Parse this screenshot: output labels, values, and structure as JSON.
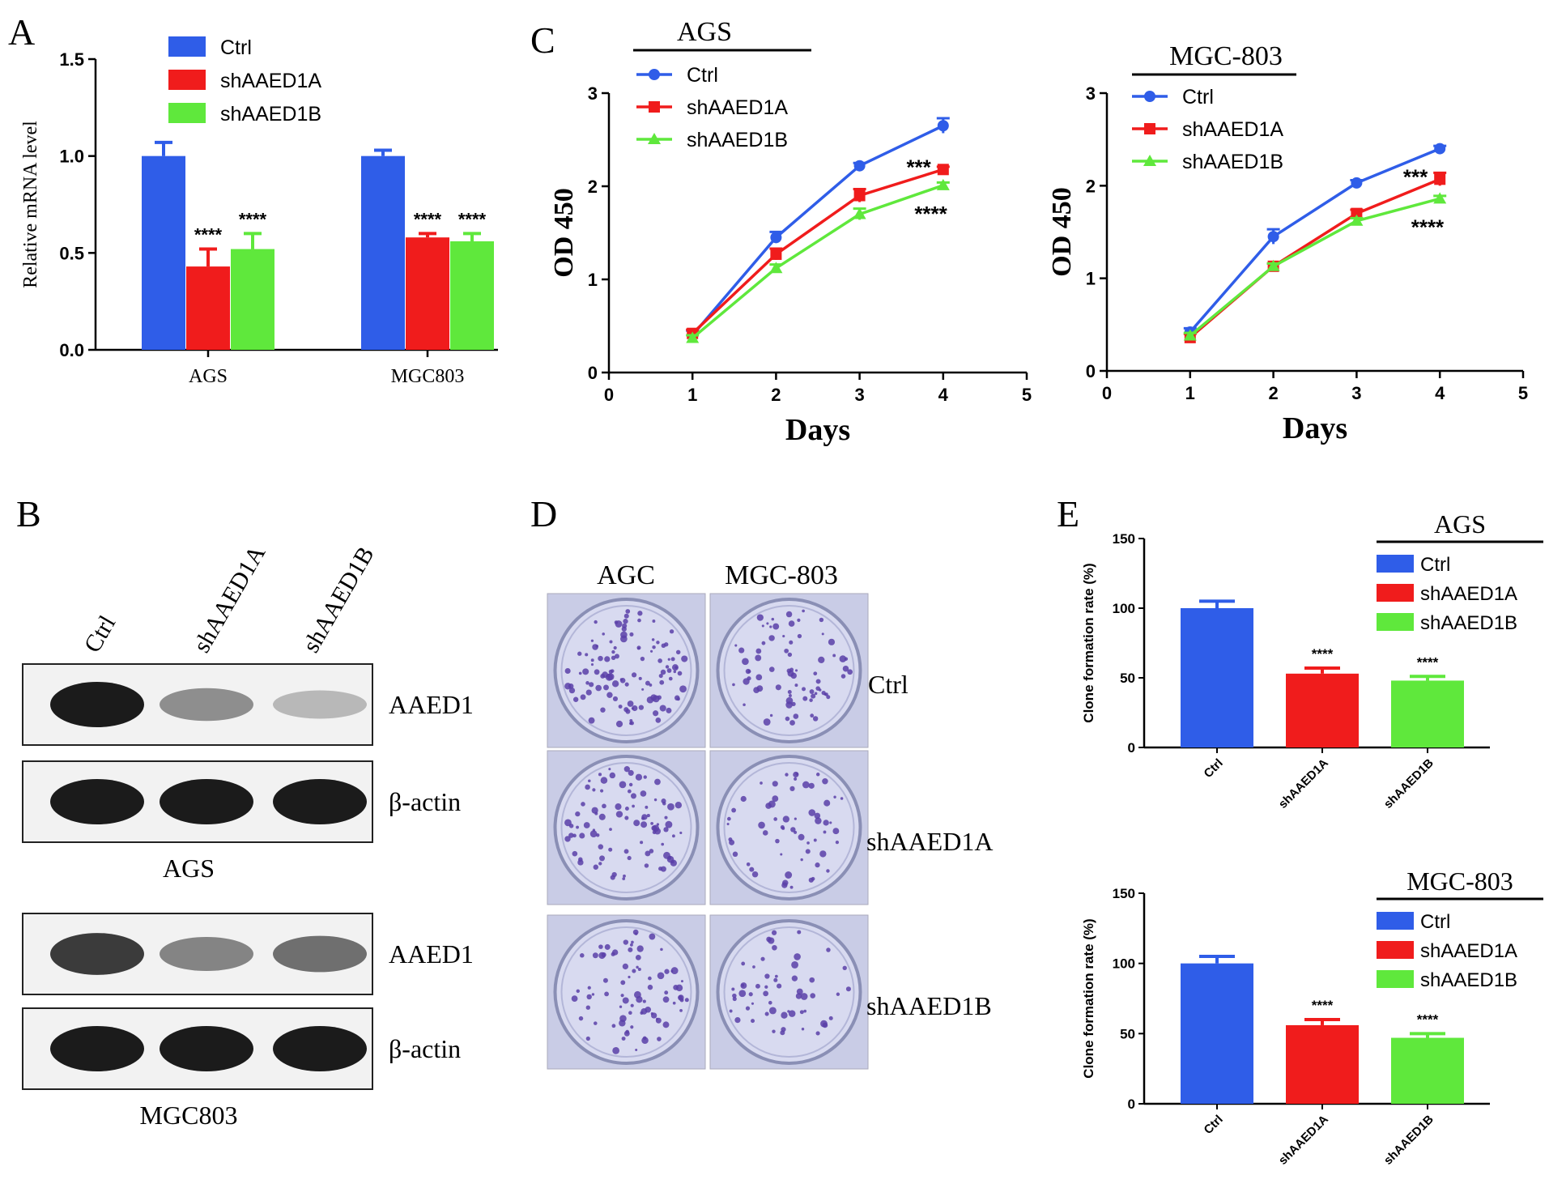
{
  "colors": {
    "ctrl": "#2f5de8",
    "shA": "#f01c1c",
    "shB": "#5fe83c",
    "dish_bg": "#d8daf0",
    "colony": "#5a3fa8"
  },
  "panel_letters": {
    "A": "A",
    "B": "B",
    "C": "C",
    "D": "D",
    "E": "E"
  },
  "chart_data": [
    {
      "id": "A",
      "type": "bar",
      "categories": [
        "AGS",
        "MGC803"
      ],
      "series": [
        {
          "name": "Ctrl",
          "values": [
            1.0,
            1.0
          ],
          "errors": [
            0.07,
            0.03
          ]
        },
        {
          "name": "shAAED1A",
          "values": [
            0.43,
            0.58
          ],
          "errors": [
            0.09,
            0.02
          ]
        },
        {
          "name": "shAAED1B",
          "values": [
            0.52,
            0.56
          ],
          "errors": [
            0.08,
            0.04
          ]
        }
      ],
      "annotations": [
        [
          "",
          "",
          ""
        ],
        [
          "",
          "****",
          "****"
        ]
      ],
      "annotations_note": "",
      "stars": [
        [
          "",
          "****",
          "****"
        ],
        [
          "",
          "****",
          "****"
        ]
      ],
      "ylabel": "Relative mRNA level",
      "ylim": [
        0,
        1.5
      ],
      "yticks": [
        "0.0",
        "0.5",
        "1.0",
        "1.5"
      ],
      "legend": "top"
    },
    {
      "id": "C1",
      "type": "line",
      "title": "AGS",
      "x": [
        1,
        2,
        3,
        4
      ],
      "series": [
        {
          "name": "Ctrl",
          "values": [
            0.4,
            1.45,
            2.22,
            2.65
          ],
          "errors": [
            0.05,
            0.06,
            0.03,
            0.08
          ]
        },
        {
          "name": "shAAED1A",
          "values": [
            0.42,
            1.27,
            1.9,
            2.18
          ],
          "errors": [
            0.04,
            0.06,
            0.07,
            0.03
          ]
        },
        {
          "name": "shAAED1B",
          "values": [
            0.37,
            1.12,
            1.7,
            2.01
          ],
          "errors": [
            0.03,
            0.04,
            0.06,
            0.03
          ]
        }
      ],
      "stars": [
        "***",
        "****"
      ],
      "xlabel": "Days",
      "ylabel": "OD 450",
      "xlim": [
        0,
        5
      ],
      "ylim": [
        0,
        3
      ],
      "xticks": [
        "0",
        "1",
        "2",
        "3",
        "4",
        "5"
      ],
      "yticks": [
        "0",
        "1",
        "2",
        "3"
      ],
      "legend": "top-left"
    },
    {
      "id": "C2",
      "type": "line",
      "title": "MGC-803",
      "x": [
        1,
        2,
        3,
        4
      ],
      "series": [
        {
          "name": "Ctrl",
          "values": [
            0.42,
            1.45,
            2.03,
            2.4
          ],
          "errors": [
            0.04,
            0.08,
            0.03,
            0.03
          ]
        },
        {
          "name": "shAAED1A",
          "values": [
            0.36,
            1.13,
            1.7,
            2.07
          ],
          "errors": [
            0.04,
            0.03,
            0.04,
            0.07
          ]
        },
        {
          "name": "shAAED1B",
          "values": [
            0.38,
            1.13,
            1.62,
            1.86
          ],
          "errors": [
            0.03,
            0.03,
            0.03,
            0.03
          ]
        }
      ],
      "stars": [
        "***",
        "****"
      ],
      "xlabel": "Days",
      "ylabel": "OD 450",
      "xlim": [
        0,
        5
      ],
      "ylim": [
        0,
        3
      ],
      "xticks": [
        "0",
        "1",
        "2",
        "3",
        "4",
        "5"
      ],
      "yticks": [
        "0",
        "1",
        "2",
        "3"
      ],
      "legend": "top-left"
    },
    {
      "id": "E1",
      "type": "bar",
      "title": "AGS",
      "categories": [
        "Ctrl",
        "shAAED1A",
        "shAAED1B"
      ],
      "values": [
        100,
        53,
        48
      ],
      "errors": [
        5,
        4,
        3
      ],
      "stars": [
        "",
        "****",
        "****"
      ],
      "series_names": [
        "Ctrl",
        "shAAED1A",
        "shAAED1B"
      ],
      "ylabel": "Clone formation rate (%)",
      "ylim": [
        0,
        150
      ],
      "yticks": [
        "0",
        "50",
        "100",
        "150"
      ],
      "legend": "top-right"
    },
    {
      "id": "E2",
      "type": "bar",
      "title": "MGC-803",
      "categories": [
        "Ctrl",
        "shAAED1A",
        "shAAED1B"
      ],
      "values": [
        100,
        56,
        47
      ],
      "errors": [
        5,
        4,
        3
      ],
      "stars": [
        "",
        "****",
        "****"
      ],
      "series_names": [
        "Ctrl",
        "shAAED1A",
        "shAAED1B"
      ],
      "ylabel": "Clone formation rate (%)",
      "ylim": [
        0,
        150
      ],
      "yticks": [
        "0",
        "50",
        "100",
        "150"
      ],
      "legend": "top-right"
    }
  ],
  "blot": {
    "lanes": [
      "Ctrl",
      "shAAED1A",
      "shAAED1B"
    ],
    "groups": [
      {
        "name": "AGS",
        "bands": [
          {
            "label": "AAED1",
            "intensity": [
              1.0,
              0.45,
              0.25
            ]
          },
          {
            "label": "β-actin",
            "intensity": [
              1.0,
              1.0,
              1.0
            ]
          }
        ]
      },
      {
        "name": "MGC803",
        "bands": [
          {
            "label": "AAED1",
            "intensity": [
              0.85,
              0.5,
              0.6
            ]
          },
          {
            "label": "β-actin",
            "intensity": [
              1.0,
              1.0,
              1.0
            ]
          }
        ]
      }
    ]
  },
  "colony": {
    "columns": [
      "AGC",
      "MGC-803"
    ],
    "rows": [
      "Ctrl",
      "shAAED1A",
      "shAAED1B"
    ]
  }
}
